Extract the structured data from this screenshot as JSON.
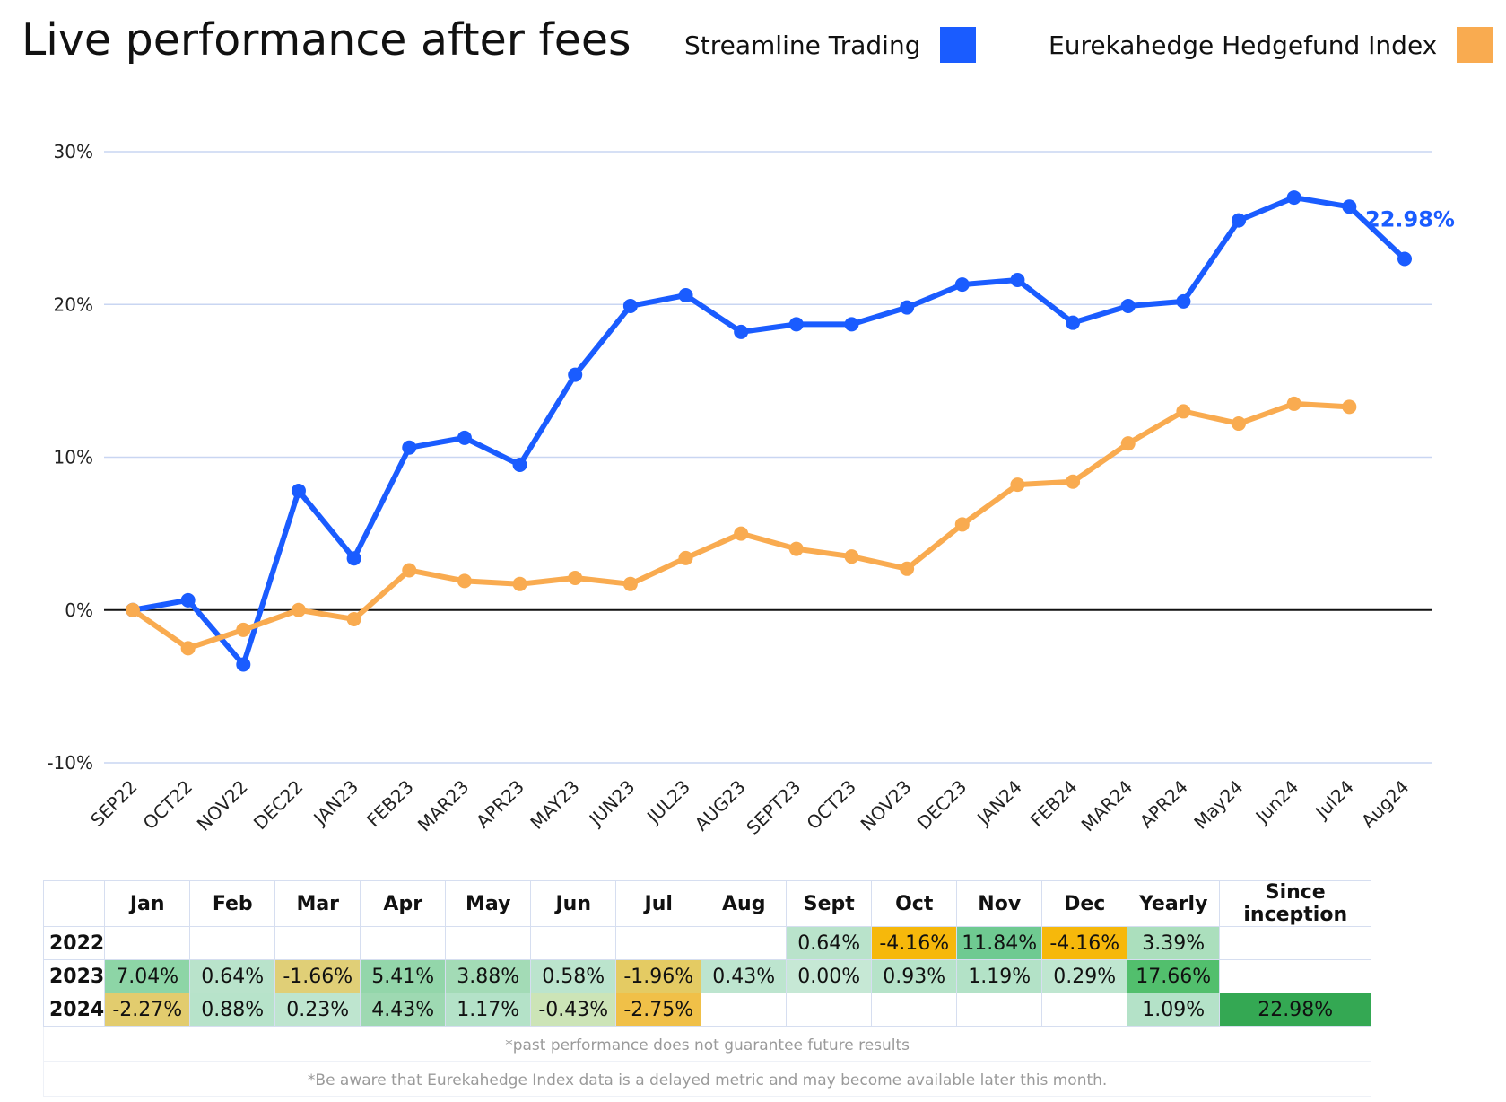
{
  "title": "Live performance after fees",
  "legend": [
    {
      "label": "Streamline Trading",
      "color": "#1a5cff"
    },
    {
      "label": "Eurekahedge Hedgefund Index",
      "color": "#f9ab50"
    }
  ],
  "chart_data": {
    "type": "line",
    "title": "Live performance after fees",
    "xlabel": "",
    "ylabel": "",
    "ylim": [
      -10,
      30
    ],
    "yticks": [
      "-10%",
      "0%",
      "10%",
      "20%",
      "30%"
    ],
    "categories": [
      "SEP22",
      "OCT22",
      "NOV22",
      "DEC22",
      "JAN23",
      "FEB23",
      "MAR23",
      "APR23",
      "MAY23",
      "JUN23",
      "JUL23",
      "AUG23",
      "SEPT23",
      "OCT23",
      "NOV23",
      "DEC23",
      "JAN24",
      "FEB24",
      "MAR24",
      "APR24",
      "May24",
      "Jun24",
      "Jul24",
      "Aug24"
    ],
    "series": [
      {
        "name": "Streamline Trading",
        "color": "#1a5cff",
        "values": [
          0,
          0.64,
          -3.57,
          7.8,
          3.38,
          10.63,
          11.27,
          9.5,
          15.4,
          19.9,
          20.6,
          18.2,
          18.7,
          18.7,
          19.8,
          21.3,
          21.6,
          18.8,
          19.9,
          20.2,
          25.5,
          27.0,
          26.4,
          22.98
        ]
      },
      {
        "name": "Eurekahedge Hedgefund Index",
        "color": "#f9ab50",
        "values": [
          0,
          -2.5,
          -1.3,
          0.0,
          -0.6,
          2.6,
          1.9,
          1.7,
          2.1,
          1.7,
          3.4,
          5.0,
          4.0,
          3.5,
          2.7,
          5.6,
          8.2,
          8.4,
          10.9,
          13.0,
          12.2,
          13.5,
          13.3,
          null
        ]
      }
    ],
    "annotation": {
      "text": "22.98%",
      "series": "Streamline Trading",
      "category": "Aug24"
    },
    "grid": true,
    "legend_position": "top-right"
  },
  "table": {
    "headers": [
      "",
      "Jan",
      "Feb",
      "Mar",
      "Apr",
      "May",
      "Jun",
      "Jul",
      "Aug",
      "Sept",
      "Oct",
      "Nov",
      "Dec",
      "Yearly",
      "Since inception"
    ],
    "rows": [
      {
        "year": "2022",
        "cells": [
          "",
          "",
          "",
          "",
          "",
          "",
          "",
          "",
          "0.64%",
          "-4.16%",
          "11.84%",
          "-4.16%",
          "3.39%",
          ""
        ]
      },
      {
        "year": "2023",
        "cells": [
          "7.04%",
          "0.64%",
          "-1.66%",
          "5.41%",
          "3.88%",
          "0.58%",
          "-1.96%",
          "0.43%",
          "0.00%",
          "0.93%",
          "1.19%",
          "0.29%",
          "17.66%",
          ""
        ]
      },
      {
        "year": "2024",
        "cells": [
          "-2.27%",
          "0.88%",
          "0.23%",
          "4.43%",
          "1.17%",
          "-0.43%",
          "-2.75%",
          "",
          "",
          "",
          "",
          "",
          "1.09%",
          "22.98%"
        ]
      }
    ],
    "cell_colors": {
      "2022": [
        "",
        "",
        "",
        "",
        "",
        "",
        "",
        "",
        "#b9e3cb",
        "#f6b80b",
        "#6fca91",
        "#f6b80b",
        "#abdfbd",
        ""
      ],
      "2023": [
        "#8dd5a6",
        "#b9e3cb",
        "#e0cf77",
        "#93d6aa",
        "#a3dbb6",
        "#bbe4cd",
        "#e4cb63",
        "#bde5cf",
        "#c6e8d5",
        "#b6e3c9",
        "#b3e2c7",
        "#bfe6d0",
        "#52bf6d",
        ""
      ],
      "2024": [
        "#e2cc6e",
        "#b7e3ca",
        "#bee5cf",
        "#9ed9b2",
        "#b4e2c8",
        "#cce4b7",
        "#f0c048",
        "",
        "",
        "",
        "",
        "",
        "#b4e2c8",
        "#34a853"
      ]
    },
    "notes": [
      "*past performance does not guarantee future results",
      "*Be aware that Eurekahedge Index data is a delayed metric and may become available later this month."
    ]
  }
}
